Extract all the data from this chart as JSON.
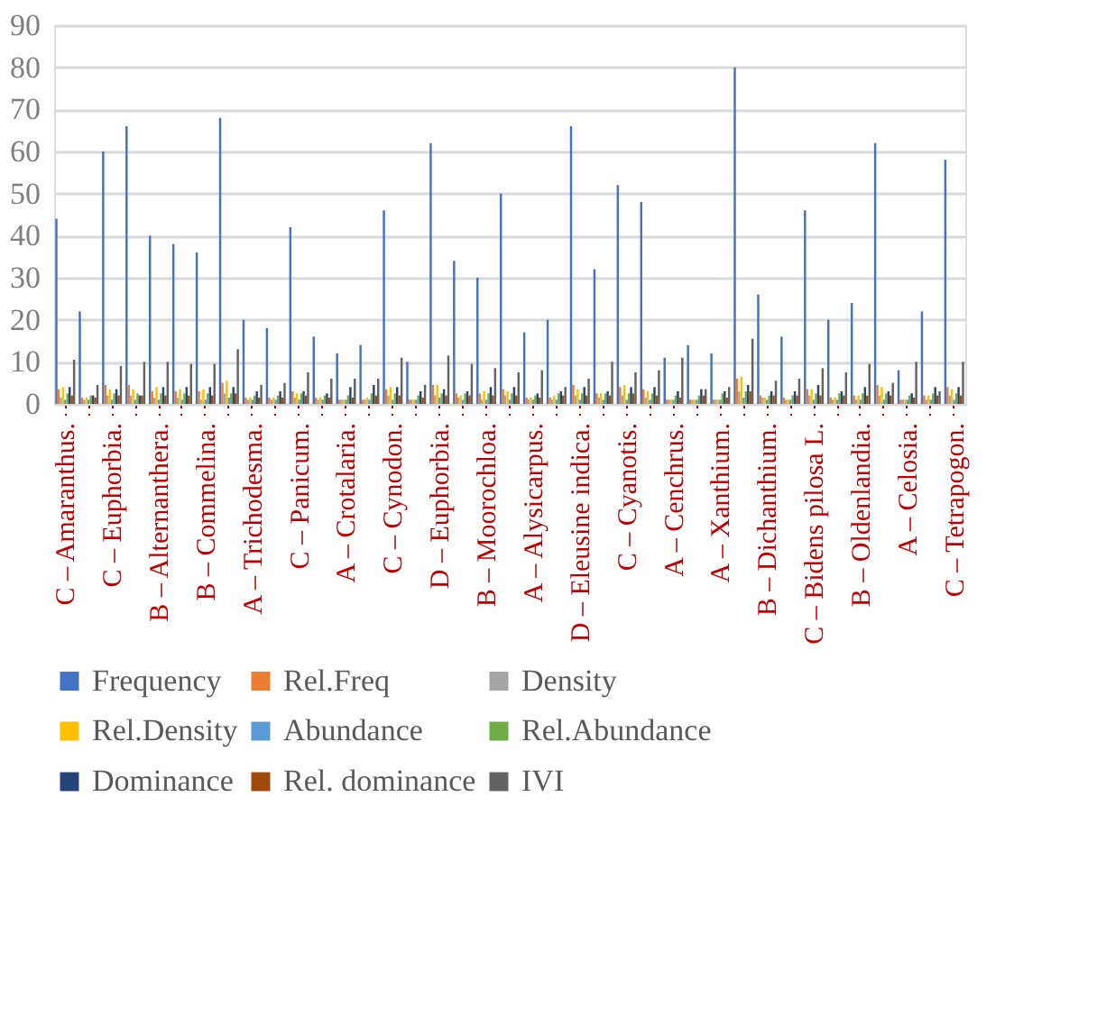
{
  "chart_data": {
    "type": "bar",
    "categories": [
      "C – Amaranthus.",
      null,
      "C – Euphorbia.",
      null,
      "B – Alternanthera.",
      null,
      "B – Commelina.",
      null,
      "A – Trichodesma.",
      null,
      "C – Panicum.",
      null,
      "A – Crotalaria.",
      null,
      "C – Cynodon.",
      null,
      "D – Euphorbia.",
      null,
      "B – Moorochloa.",
      null,
      "A – Alysicarpus.",
      null,
      "D – Eleusine indica.",
      null,
      "C – Cyanotis.",
      null,
      "A – Cenchrus.",
      null,
      "A – Xanthium.",
      null,
      "B – Dichanthium.",
      null,
      "C – Bidens pilosa L.",
      null,
      "B – Oldenlandia.",
      null,
      "A – Celosia.",
      null,
      "C – Tetrapogon."
    ],
    "series": [
      {
        "name": "Frequency",
        "color": "#4472c4",
        "values": [
          44,
          22,
          60,
          66,
          40,
          38,
          36,
          68,
          20,
          18,
          42,
          16,
          12,
          14,
          46,
          10,
          62,
          34,
          30,
          50,
          17,
          20,
          66,
          32,
          52,
          48,
          11,
          14,
          12,
          80,
          26,
          16,
          46,
          20,
          24,
          62,
          8,
          22,
          58
        ]
      },
      {
        "name": "Rel.Freq",
        "color": "#ed7d31",
        "values": [
          3.5,
          1.5,
          4.5,
          4.5,
          3,
          3,
          3,
          5,
          1.5,
          1.5,
          3,
          1.5,
          1,
          1,
          3.5,
          1,
          4.5,
          2.5,
          2.5,
          3.5,
          1.5,
          1.5,
          4.5,
          2.5,
          4,
          3.5,
          1,
          1,
          1,
          6,
          2,
          1.5,
          3.5,
          1.5,
          2,
          4.5,
          1,
          2,
          4
        ]
      },
      {
        "name": "Density",
        "color": "#a5a5a5",
        "values": [
          1.5,
          1,
          2,
          2,
          1.5,
          1.5,
          1,
          2.5,
          1,
          1,
          1.5,
          1,
          1,
          1,
          2,
          1,
          2,
          1.5,
          1,
          2,
          1,
          1,
          2,
          1.5,
          2,
          1.5,
          1,
          1,
          1,
          3,
          1.5,
          1,
          2,
          1,
          1,
          2,
          1,
          1,
          2
        ]
      },
      {
        "name": "Rel.Density",
        "color": "#ffc000",
        "values": [
          4,
          1.5,
          3.5,
          3.5,
          4,
          3.5,
          3.5,
          5.5,
          1.5,
          1.5,
          2.5,
          1.5,
          1,
          1.5,
          4,
          1,
          4.5,
          2,
          3,
          3,
          1.5,
          2,
          3.5,
          2.5,
          4.5,
          3,
          1,
          1,
          1,
          6.5,
          1.5,
          1,
          3.5,
          1.5,
          2,
          4,
          1,
          2,
          3.5
        ]
      },
      {
        "name": "Abundance",
        "color": "#5b9bd5",
        "values": [
          1,
          1,
          1,
          1,
          1,
          1,
          1,
          1.5,
          1,
          1,
          1,
          1,
          1,
          1,
          1,
          1,
          1.5,
          1,
          1,
          1,
          1,
          1,
          1,
          1,
          1,
          1,
          1,
          1,
          1,
          1.5,
          1,
          1,
          1,
          1,
          1,
          1,
          1,
          1,
          1
        ]
      },
      {
        "name": "Rel.Abundance",
        "color": "#70ad47",
        "values": [
          2.5,
          2,
          2.5,
          2.5,
          2.5,
          2.5,
          2.5,
          2.5,
          2,
          2,
          2.5,
          2,
          2,
          2.5,
          2.5,
          2,
          2.5,
          2.5,
          2.5,
          2.5,
          2,
          2.5,
          2.5,
          2.5,
          2.5,
          2.5,
          2,
          2,
          2.5,
          3,
          2,
          2,
          2.5,
          2.5,
          2.5,
          2.5,
          2,
          2.5,
          2.5
        ]
      },
      {
        "name": "Dominance",
        "color": "#264478",
        "values": [
          4,
          2,
          3.5,
          2,
          4,
          4,
          4,
          4,
          3,
          3,
          3,
          2.5,
          4,
          4.5,
          4,
          3,
          3.5,
          3,
          4,
          4,
          2.5,
          3,
          4,
          3,
          4,
          4,
          3,
          3.5,
          3,
          4.5,
          3,
          3,
          4.5,
          3,
          4,
          3,
          2.5,
          4,
          4
        ]
      },
      {
        "name": "Rel. dominance",
        "color": "#9e480e",
        "values": [
          2,
          1.5,
          2,
          2,
          2,
          2,
          2,
          2.5,
          1.5,
          1.5,
          2,
          1.5,
          1.5,
          2,
          2,
          1.5,
          2,
          2,
          2,
          2,
          1.5,
          2,
          2,
          2,
          2.5,
          2,
          1.5,
          2,
          1.5,
          3,
          2,
          2,
          2,
          2,
          2,
          2,
          1.5,
          2,
          2
        ]
      },
      {
        "name": "IVI",
        "color": "#636363",
        "values": [
          10.5,
          4.5,
          9,
          10,
          10,
          9.5,
          9.5,
          13,
          4.5,
          5,
          7.5,
          6,
          6,
          6,
          11,
          4.5,
          11.5,
          9.5,
          8.5,
          7.5,
          8,
          4,
          6,
          10,
          7.5,
          8,
          11,
          3.5,
          4,
          15.5,
          5.5,
          6,
          8.5,
          7.5,
          9.5,
          5,
          10,
          3,
          10
        ]
      }
    ],
    "ylim": [
      0,
      90
    ],
    "yticks": [
      0,
      10,
      20,
      30,
      40,
      50,
      60,
      70,
      80,
      90
    ],
    "grid": "y",
    "legend": "bottom"
  }
}
